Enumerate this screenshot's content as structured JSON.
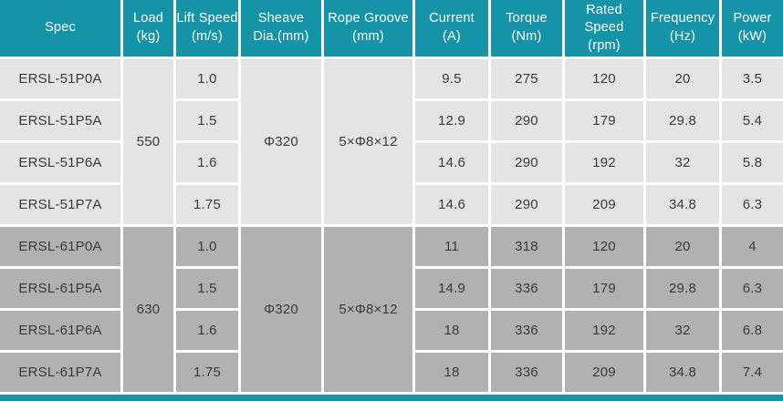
{
  "colors": {
    "header_bg": "#1494a6",
    "header_text": "#ffffff",
    "row_light_bg": "#e4e4e4",
    "row_dark_bg": "#b1b1b1",
    "cell_text": "#3a3a3a",
    "divider": "#ffffff",
    "bottom_bar_bg": "#1c93a5"
  },
  "header_lines": [
    "Spec",
    "Load\n(kg)",
    "Lift Speed\n(m/s)",
    "Sheave\nDia.(mm)",
    "Rope Groove\n(mm)",
    "Current\n(A)",
    "Torque\n(Nm)",
    "Rated Speed\n(rpm)",
    "Frequency\n(Hz)",
    "Power\n(kW)"
  ],
  "chart_data": {
    "type": "table",
    "columns": [
      "Spec",
      "Load (kg)",
      "Lift Speed (m/s)",
      "Sheave Dia.(mm)",
      "Rope Groove (mm)",
      "Current (A)",
      "Torque (Nm)",
      "Rated Speed (rpm)",
      "Frequency (Hz)",
      "Power (kW)"
    ],
    "rows": [
      [
        "ERSL-51P0A",
        "550",
        "1.0",
        "Φ320",
        "5×Φ8×12",
        "9.5",
        "275",
        "120",
        "20",
        "3.5"
      ],
      [
        "ERSL-51P5A",
        "550",
        "1.5",
        "Φ320",
        "5×Φ8×12",
        "12.9",
        "290",
        "179",
        "29.8",
        "5.4"
      ],
      [
        "ERSL-51P6A",
        "550",
        "1.6",
        "Φ320",
        "5×Φ8×12",
        "14.6",
        "290",
        "192",
        "32",
        "5.8"
      ],
      [
        "ERSL-51P7A",
        "550",
        "1.75",
        "Φ320",
        "5×Φ8×12",
        "14.6",
        "290",
        "209",
        "34.8",
        "6.3"
      ],
      [
        "ERSL-61P0A",
        "630",
        "1.0",
        "Φ320",
        "5×Φ8×12",
        "11",
        "318",
        "120",
        "20",
        "4"
      ],
      [
        "ERSL-61P5A",
        "630",
        "1.5",
        "Φ320",
        "5×Φ8×12",
        "14.9",
        "336",
        "179",
        "29.8",
        "6.3"
      ],
      [
        "ERSL-61P6A",
        "630",
        "1.6",
        "Φ320",
        "5×Φ8×12",
        "18",
        "336",
        "192",
        "32",
        "6.8"
      ],
      [
        "ERSL-61P7A",
        "630",
        "1.75",
        "Φ320",
        "5×Φ8×12",
        "18",
        "336",
        "209",
        "34.8",
        "7.4"
      ]
    ],
    "merges": [
      {
        "column": "Load (kg)",
        "rows": [
          0,
          3
        ],
        "value": "550"
      },
      {
        "column": "Sheave Dia.(mm)",
        "rows": [
          0,
          3
        ],
        "value": "Φ320"
      },
      {
        "column": "Rope Groove (mm)",
        "rows": [
          0,
          3
        ],
        "value": "5×Φ8×12"
      },
      {
        "column": "Load (kg)",
        "rows": [
          4,
          7
        ],
        "value": "630"
      },
      {
        "column": "Sheave Dia.(mm)",
        "rows": [
          4,
          7
        ],
        "value": "Φ320"
      },
      {
        "column": "Rope Groove (mm)",
        "rows": [
          4,
          7
        ],
        "value": "5×Φ8×12"
      }
    ],
    "layout_hints": {
      "header_style": "teal background, white text",
      "group1_rows_bg": "light gray",
      "group2_rows_bg": "dark gray",
      "grid": "white cell dividers",
      "footer": "teal accent bar across full width"
    }
  }
}
